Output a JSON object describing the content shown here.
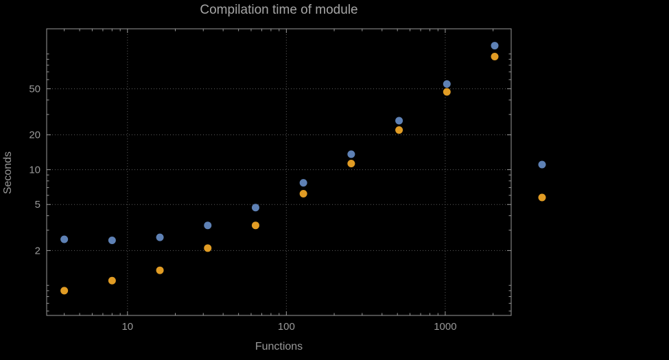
{
  "chart_data": {
    "type": "scatter",
    "title": "Compilation time of module",
    "xlabel": "Functions",
    "ylabel": "Seconds",
    "xscale": "log",
    "yscale": "log",
    "xlim": [
      3.1,
      2600
    ],
    "ylim": [
      0.55,
      165
    ],
    "xticks": [
      10,
      100,
      1000
    ],
    "yticks": [
      2,
      5,
      10,
      20,
      50
    ],
    "grid": "dotted",
    "background_color": "#000000",
    "frame_color": "#9a9a9a",
    "grid_color": "#5f5f5f",
    "text_color": "#a6a6a6",
    "x": [
      4,
      8,
      16,
      32,
      64,
      128,
      256,
      512,
      1024,
      2048
    ],
    "series": [
      {
        "name": "blue",
        "color": "#5e81b5",
        "values": [
          2.5,
          2.45,
          2.6,
          3.3,
          4.7,
          7.7,
          13.6,
          26.5,
          55,
          118
        ]
      },
      {
        "name": "orange",
        "color": "#e19c24",
        "values": [
          0.9,
          1.1,
          1.35,
          2.1,
          3.3,
          6.2,
          11.3,
          22,
          47,
          95
        ]
      }
    ],
    "legend": {
      "markers": [
        "blue",
        "orange"
      ]
    }
  }
}
